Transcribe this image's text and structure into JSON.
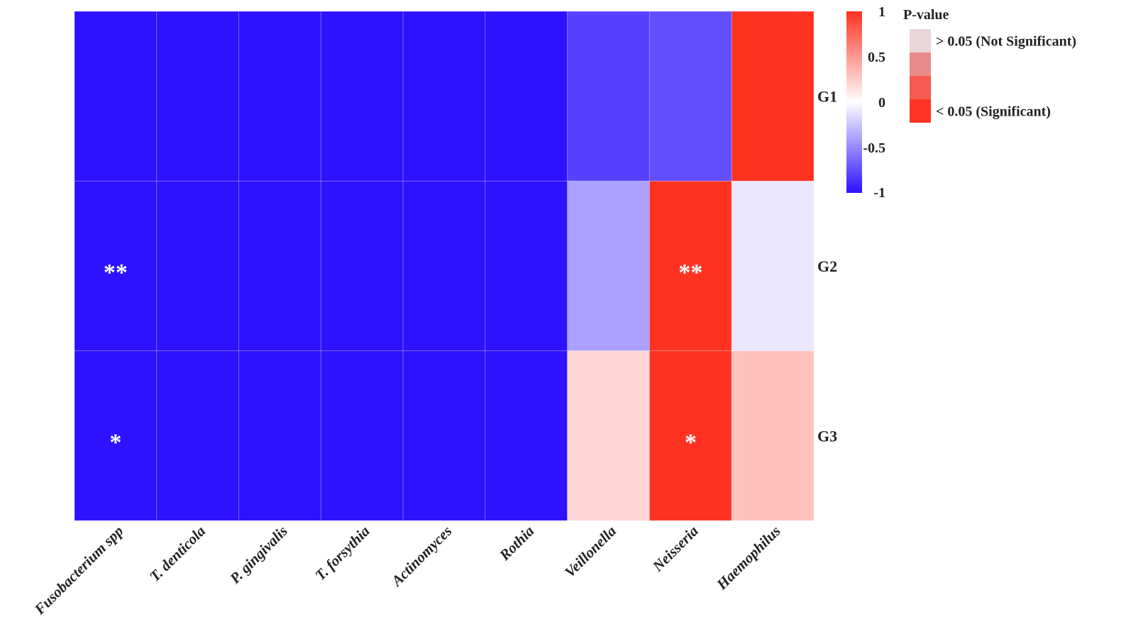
{
  "chart_data": {
    "type": "heatmap",
    "title": "",
    "xlabel": "",
    "ylabel": "",
    "categories": [
      "Fusobacterium spp",
      "T. denticola",
      "P. gingivalis",
      "T. forsythia",
      "Actinomyces",
      "Rothia",
      "Veillonella",
      "Neisseria",
      "Haemophilus"
    ],
    "rows": [
      "G1",
      "G2",
      "G3"
    ],
    "values": [
      [
        -1,
        -1,
        -1,
        -1,
        -1,
        -1,
        -0.8,
        -0.75,
        1
      ],
      [
        -1,
        -1,
        -1,
        -1,
        -1,
        -1,
        -0.4,
        1,
        -0.1
      ],
      [
        -1,
        -1,
        -1,
        -1,
        -1,
        -1,
        0.2,
        1,
        0.3
      ]
    ],
    "significance": [
      [
        "",
        "",
        "",
        "",
        "",
        "",
        "",
        "",
        ""
      ],
      [
        "**",
        "",
        "",
        "",
        "",
        "",
        "",
        "**",
        ""
      ],
      [
        "*",
        "",
        "",
        "",
        "",
        "",
        "",
        "*",
        ""
      ]
    ],
    "colorbar": {
      "min": -1,
      "max": 1,
      "ticks": [
        "1",
        "0.5",
        "0",
        "-0.5",
        "-1"
      ],
      "tick_values": [
        1,
        0.5,
        0,
        -0.5,
        -1
      ],
      "low_color": "#2d11ff",
      "mid_color": "#ffffff",
      "high_color": "#ff3222"
    },
    "legend": {
      "title": "P-value",
      "placement": "top-right",
      "items": [
        {
          "label": "> 0.05 (Not Significant)",
          "color": "#e8d6d8"
        },
        {
          "label": "",
          "color": "#e98a8a"
        },
        {
          "label": "",
          "color": "#f55a52"
        },
        {
          "label": "< 0.05 (Significant)",
          "color": "#ff3424"
        }
      ]
    }
  }
}
